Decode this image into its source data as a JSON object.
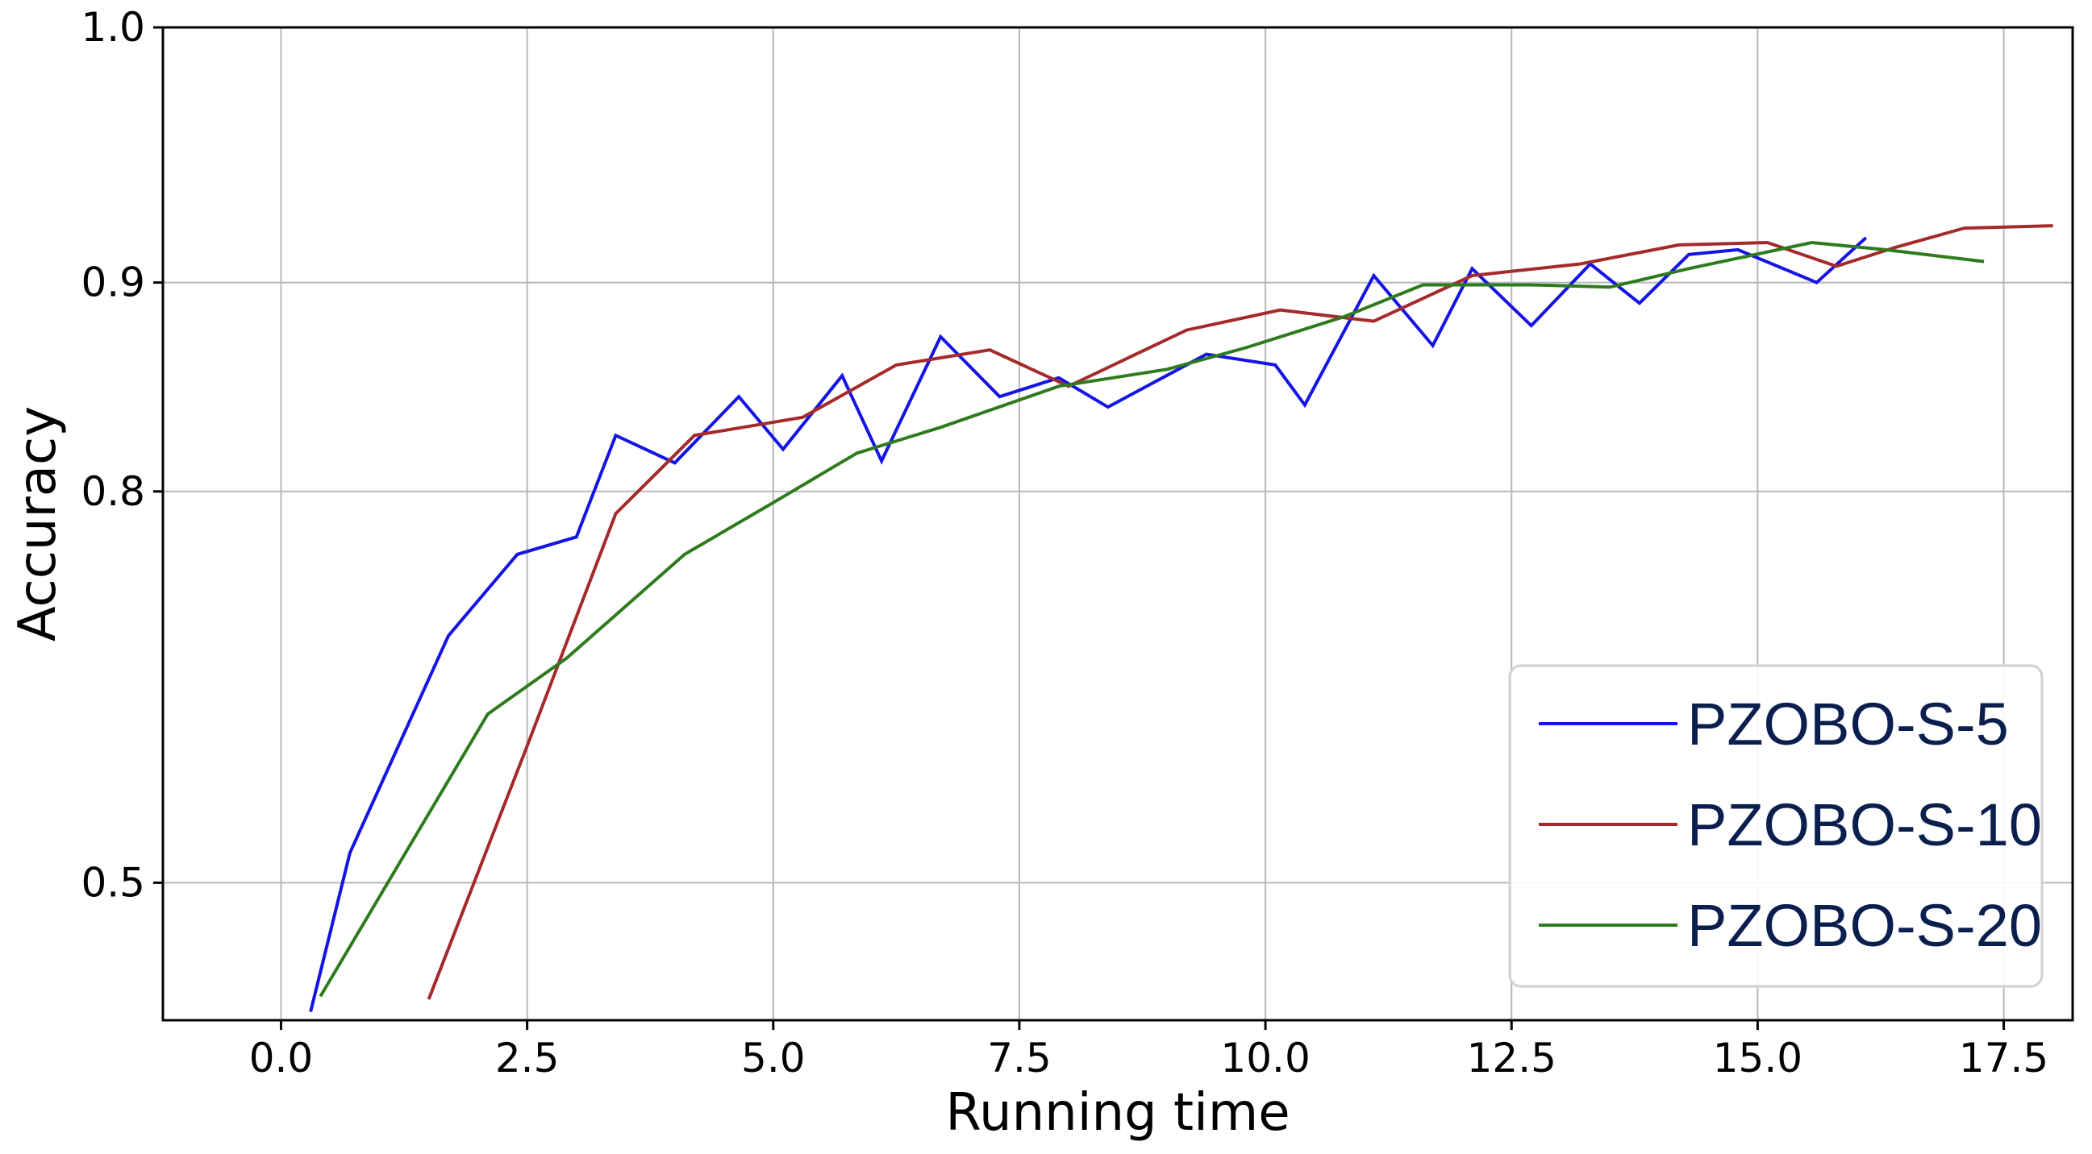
{
  "chart_data": {
    "type": "line",
    "title": "",
    "xlabel": "Running time",
    "ylabel": "Accuracy",
    "xlim": [
      -1.2,
      18.2
    ],
    "ylim": [
      0.16,
      1.0
    ],
    "y_scale": "power",
    "x_ticks": [
      0.0,
      2.5,
      5.0,
      7.5,
      10.0,
      12.5,
      15.0,
      17.5
    ],
    "x_tick_labels": [
      "0.0",
      "2.5",
      "5.0",
      "7.5",
      "10.0",
      "12.5",
      "15.0",
      "17.5"
    ],
    "y_ticks": [
      0.5,
      0.8,
      0.9,
      1.0
    ],
    "y_tick_labels": [
      "0.5",
      "0.8",
      "0.9",
      "1.0"
    ],
    "grid": true,
    "legend_position": "bottom-right",
    "series": [
      {
        "name": "PZOBO-S-5",
        "color": "#1414e6",
        "x": [
          0.3,
          0.7,
          1.7,
          2.4,
          3.0,
          3.4,
          4.0,
          4.65,
          5.1,
          5.7,
          6.1,
          6.7,
          7.3,
          7.9,
          8.4,
          9.4,
          10.1,
          10.4,
          11.1,
          11.7,
          12.1,
          12.7,
          13.3,
          13.8,
          14.3,
          14.8,
          15.6,
          16.1
        ],
        "y": [
          0.22,
          0.535,
          0.715,
          0.765,
          0.775,
          0.829,
          0.815,
          0.848,
          0.822,
          0.858,
          0.816,
          0.876,
          0.848,
          0.857,
          0.843,
          0.868,
          0.863,
          0.844,
          0.903,
          0.872,
          0.906,
          0.881,
          0.908,
          0.891,
          0.912,
          0.914,
          0.9,
          0.919
        ]
      },
      {
        "name": "PZOBO-S-10",
        "color": "#a52a2a",
        "x": [
          1.5,
          2.5,
          3.4,
          4.2,
          5.3,
          6.25,
          7.2,
          8.0,
          9.2,
          10.15,
          11.1,
          12.1,
          13.2,
          14.2,
          15.1,
          15.8,
          16.4,
          17.1,
          18.0
        ],
        "y": [
          0.275,
          0.635,
          0.788,
          0.829,
          0.838,
          0.863,
          0.87,
          0.853,
          0.879,
          0.888,
          0.883,
          0.903,
          0.908,
          0.916,
          0.917,
          0.907,
          0.915,
          0.923,
          0.924
        ]
      },
      {
        "name": "PZOBO-S-20",
        "color": "#2e7b1e",
        "x": [
          0.4,
          2.1,
          2.9,
          4.1,
          5.0,
          5.85,
          6.7,
          7.9,
          9.0,
          9.8,
          10.8,
          11.6,
          12.7,
          13.5,
          14.3,
          15.55,
          16.3,
          17.3
        ],
        "y": [
          0.285,
          0.66,
          0.7,
          0.765,
          0.794,
          0.82,
          0.833,
          0.853,
          0.861,
          0.871,
          0.885,
          0.899,
          0.899,
          0.898,
          0.906,
          0.917,
          0.914,
          0.909
        ]
      }
    ]
  }
}
